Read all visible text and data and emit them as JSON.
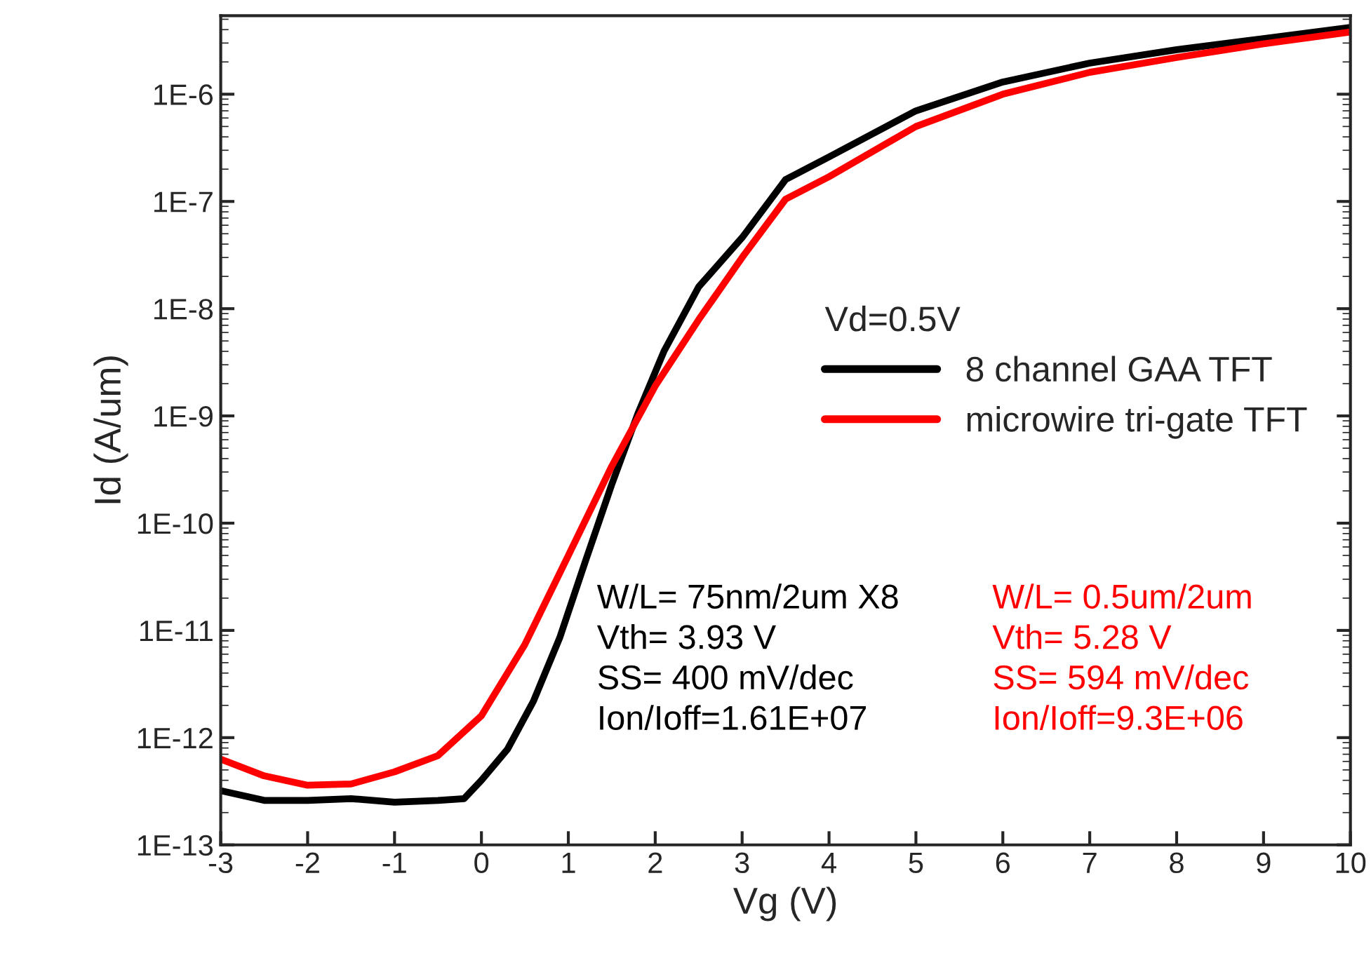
{
  "chart_data": {
    "type": "line",
    "xlabel": "Vg (V)",
    "ylabel": "Id (A/um)",
    "legend_title": "Vd=0.5V",
    "legend": "right",
    "log": "y",
    "grid": false,
    "marker": "none",
    "line_style": "solid",
    "xlim": [
      -3,
      10
    ],
    "xticks": [
      -3,
      -2,
      -1,
      0,
      1,
      2,
      3,
      4,
      5,
      6,
      7,
      8,
      9,
      10
    ],
    "ylim": [
      1e-13,
      5.4e-06
    ],
    "yticks": [
      {
        "value": 1e-13,
        "label": "1E-13"
      },
      {
        "value": 1e-12,
        "label": "1E-12"
      },
      {
        "value": 1e-11,
        "label": "1E-11"
      },
      {
        "value": 1e-10,
        "label": "1E-10"
      },
      {
        "value": 1e-09,
        "label": "1E-9"
      },
      {
        "value": 1e-08,
        "label": "1E-8"
      },
      {
        "value": 1e-07,
        "label": "1E-7"
      },
      {
        "value": 1e-06,
        "label": "1E-6"
      }
    ],
    "series": [
      {
        "name": "8 channel GAA TFT",
        "color": "#000000",
        "x": [
          -3,
          -2.5,
          -2,
          -1.5,
          -1,
          -0.5,
          -0.2,
          0,
          0.3,
          0.6,
          0.9,
          1.2,
          1.5,
          1.8,
          2.1,
          2.5,
          3,
          3.5,
          4,
          5,
          6,
          7,
          8,
          9,
          10
        ],
        "values": [
          3.2e-13,
          2.6e-13,
          2.6e-13,
          2.7e-13,
          2.5e-13,
          2.6e-13,
          2.7e-13,
          4e-13,
          7.8e-13,
          2.2e-12,
          8.5e-12,
          4.5e-11,
          2.3e-10,
          1.05e-09,
          4e-09,
          1.6e-08,
          4.6e-08,
          1.6e-07,
          2.6e-07,
          7e-07,
          1.3e-06,
          1.95e-06,
          2.6e-06,
          3.3e-06,
          4.2e-06
        ]
      },
      {
        "name": "microwire tri-gate TFT",
        "color": "#ff0000",
        "x": [
          -3,
          -2.5,
          -2,
          -1.5,
          -1,
          -0.5,
          0,
          0.5,
          1,
          1.5,
          2,
          2.5,
          3,
          3.5,
          4,
          5,
          6,
          7,
          8,
          9,
          10
        ],
        "values": [
          6.3e-13,
          4.4e-13,
          3.6e-13,
          3.7e-13,
          4.8e-13,
          6.8e-13,
          1.6e-12,
          7.4e-12,
          5e-11,
          3.4e-10,
          1.9e-09,
          7.9e-09,
          3e-08,
          1.05e-07,
          1.7e-07,
          5e-07,
          1e-06,
          1.6e-06,
          2.2e-06,
          2.95e-06,
          3.8e-06
        ]
      }
    ],
    "annotations": [
      "W/L= 75nm/2um X8\nVth= 3.93 V\nSS= 400 mV/dec\nIon/Ioff=1.61E+07",
      "W/L= 0.5um/2um\nVth= 5.28 V\nSS= 594 mV/dec\nIon/Ioff=9.3E+06"
    ]
  }
}
